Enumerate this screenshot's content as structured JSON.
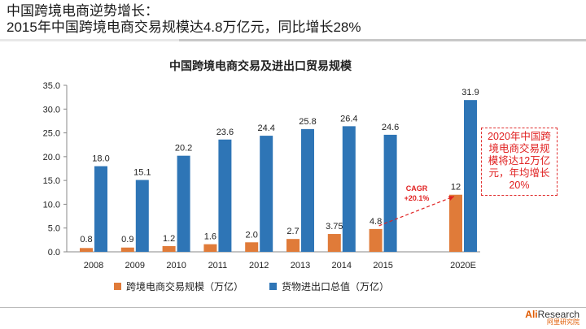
{
  "headline": {
    "line1": "中国跨境电商逆势增长：",
    "line2": "2015年中国跨境电商交易规模达4.8万亿元，同比增长28%"
  },
  "chart_data": {
    "type": "bar",
    "title": "中国跨境电商交易及进出口贸易规模",
    "categories": [
      "2008",
      "2009",
      "2010",
      "2011",
      "2012",
      "2013",
      "2014",
      "2015",
      "2020E"
    ],
    "series": [
      {
        "name": "跨境电商交易规模（万亿）",
        "color": "#e07b39",
        "values": [
          0.8,
          0.9,
          1.2,
          1.6,
          2.0,
          2.7,
          3.75,
          4.8,
          12
        ],
        "labels": [
          "0.8",
          "0.9",
          "1.2",
          "1.6",
          "2.0",
          "2.7",
          "3.75",
          "4.8",
          "12"
        ]
      },
      {
        "name": "货物进出口总值（万亿）",
        "color": "#2e75b6",
        "values": [
          18.0,
          15.1,
          20.2,
          23.6,
          24.4,
          25.8,
          26.4,
          24.6,
          31.9
        ],
        "labels": [
          "18.0",
          "15.1",
          "20.2",
          "23.6",
          "24.4",
          "25.8",
          "26.4",
          "24.6",
          "31.9"
        ]
      }
    ],
    "ylim": [
      0,
      35
    ],
    "yticks": [
      "0.0",
      "5.0",
      "10.0",
      "15.0",
      "20.0",
      "25.0",
      "30.0",
      "35.0"
    ],
    "grid": false,
    "legend": "bottom",
    "annotations": {
      "cagr_label": "CAGR",
      "cagr_value": "+20.1%",
      "callout": "2020年中国跨境电商交易规模将达12万亿元，年均增长20%"
    }
  },
  "logo": {
    "prefix": "Ali",
    "suffix": "Research",
    "sub": "阿里研究院"
  }
}
